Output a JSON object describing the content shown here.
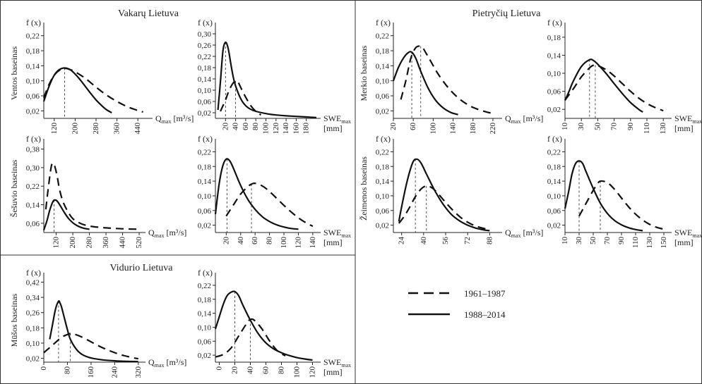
{
  "regions": {
    "west": "Vakarų Lietuva",
    "southeast": "Pietryčių Lietuva",
    "central": "Vidurio Lietuva"
  },
  "legend": {
    "dashed": "1961–1987",
    "solid": "1988–2014"
  },
  "fx_label": "f (x)",
  "chart_data": [
    {
      "id": "venta-q",
      "type": "line",
      "basin": "Ventos baseinas",
      "var": "Q",
      "xunit": "[m³/s]",
      "xticks": [
        120,
        200,
        280,
        360,
        440
      ],
      "xlim": [
        80,
        480
      ],
      "yticks": [
        0.02,
        0.06,
        0.1,
        0.14,
        0.18,
        0.22
      ],
      "ylim": [
        0,
        0.24
      ],
      "series": [
        {
          "style": "dashed",
          "x": [
            80,
            100,
            120,
            140,
            160,
            180,
            200,
            240,
            280,
            320,
            360,
            400,
            440,
            460
          ],
          "y": [
            0.055,
            0.09,
            0.115,
            0.128,
            0.133,
            0.13,
            0.124,
            0.106,
            0.083,
            0.062,
            0.045,
            0.031,
            0.021,
            0.017
          ]
        },
        {
          "style": "solid",
          "x": [
            80,
            100,
            120,
            140,
            160,
            180,
            200,
            220,
            240,
            260,
            280,
            300,
            320,
            340
          ],
          "y": [
            0.045,
            0.085,
            0.115,
            0.13,
            0.134,
            0.13,
            0.118,
            0.102,
            0.084,
            0.066,
            0.049,
            0.035,
            0.023,
            0.015
          ]
        }
      ],
      "peaks": [
        {
          "style": "solid",
          "x": 160,
          "y": 0.134
        }
      ]
    },
    {
      "id": "venta-swe",
      "type": "line",
      "basin": "",
      "var": "SWE",
      "xunit": "[mm]",
      "xticks": [
        20,
        40,
        60,
        80,
        100,
        120,
        140,
        160,
        180
      ],
      "xlim": [
        0,
        200
      ],
      "yticks": [
        0.02,
        0.06,
        0.1,
        0.14,
        0.18,
        0.22,
        0.26,
        0.3
      ],
      "ylim": [
        0,
        0.32
      ],
      "series": [
        {
          "style": "dashed",
          "x": [
            10,
            15,
            20,
            25,
            30,
            35,
            40,
            45,
            50,
            60,
            70,
            80,
            90
          ],
          "y": [
            0.025,
            0.045,
            0.065,
            0.09,
            0.11,
            0.125,
            0.133,
            0.128,
            0.11,
            0.075,
            0.045,
            0.025,
            0.012
          ]
        },
        {
          "style": "solid",
          "x": [
            5,
            10,
            15,
            20,
            25,
            30,
            35,
            40,
            50,
            60,
            70,
            80,
            100,
            120,
            140,
            160,
            180,
            200
          ],
          "y": [
            0.03,
            0.13,
            0.24,
            0.27,
            0.25,
            0.2,
            0.15,
            0.115,
            0.07,
            0.045,
            0.032,
            0.025,
            0.017,
            0.012,
            0.009,
            0.007,
            0.005,
            0.003
          ]
        }
      ],
      "peaks": [
        {
          "style": "solid",
          "x": 20,
          "y": 0.27
        },
        {
          "style": "dashed",
          "x": 40,
          "y": 0.133
        }
      ]
    },
    {
      "id": "merkys-q",
      "type": "line",
      "basin": "Merkio baseinas",
      "var": "Q",
      "xunit": "[m³/s]",
      "xticks": [
        20,
        60,
        100,
        140,
        180,
        220
      ],
      "xlim": [
        20,
        230
      ],
      "yticks": [
        0.02,
        0.06,
        0.1,
        0.14,
        0.18,
        0.22
      ],
      "ylim": [
        0,
        0.24
      ],
      "series": [
        {
          "style": "dashed",
          "x": [
            35,
            45,
            55,
            65,
            75,
            80,
            85,
            95,
            110,
            130,
            150,
            170,
            190,
            210,
            225
          ],
          "y": [
            0.05,
            0.1,
            0.16,
            0.188,
            0.192,
            0.186,
            0.175,
            0.152,
            0.118,
            0.082,
            0.055,
            0.036,
            0.024,
            0.016,
            0.012
          ]
        },
        {
          "style": "solid",
          "x": [
            20,
            30,
            40,
            50,
            57,
            65,
            75,
            90,
            105,
            120,
            135,
            150
          ],
          "y": [
            0.1,
            0.135,
            0.16,
            0.175,
            0.176,
            0.16,
            0.125,
            0.08,
            0.048,
            0.028,
            0.016,
            0.01
          ]
        }
      ],
      "peaks": [
        {
          "style": "solid",
          "x": 57,
          "y": 0.176
        },
        {
          "style": "dashed",
          "x": 75,
          "y": 0.192
        }
      ]
    },
    {
      "id": "merkys-swe",
      "type": "line",
      "basin": "",
      "var": "SWE",
      "xunit": "[mm]",
      "xticks": [
        10,
        30,
        50,
        70,
        90,
        110,
        130
      ],
      "xlim": [
        10,
        135
      ],
      "yticks": [
        0.02,
        0.06,
        0.1,
        0.14,
        0.18
      ],
      "ylim": [
        0,
        0.2
      ],
      "series": [
        {
          "style": "dashed",
          "x": [
            10,
            20,
            30,
            40,
            45,
            50,
            60,
            70,
            80,
            90,
            100,
            110,
            120,
            130
          ],
          "y": [
            0.04,
            0.065,
            0.092,
            0.112,
            0.118,
            0.117,
            0.108,
            0.094,
            0.077,
            0.06,
            0.045,
            0.033,
            0.024,
            0.017
          ]
        },
        {
          "style": "solid",
          "x": [
            10,
            15,
            20,
            30,
            40,
            45,
            50,
            60,
            70,
            80,
            90,
            100,
            105
          ],
          "y": [
            0.04,
            0.06,
            0.082,
            0.115,
            0.13,
            0.128,
            0.12,
            0.1,
            0.077,
            0.055,
            0.035,
            0.02,
            0.014
          ]
        }
      ],
      "peaks": [
        {
          "style": "solid",
          "x": 40,
          "y": 0.13
        },
        {
          "style": "dashed",
          "x": 47,
          "y": 0.118
        }
      ]
    },
    {
      "id": "sesuvis-q",
      "type": "line",
      "basin": "Šešuvio baseinas",
      "var": "Q",
      "xunit": "[m³/s]",
      "xticks": [
        120,
        200,
        280,
        360,
        440,
        520
      ],
      "xlim": [
        60,
        530
      ],
      "yticks": [
        0.06,
        0.14,
        0.22,
        0.3,
        0.38
      ],
      "ylim": [
        0.02,
        0.4
      ],
      "series": [
        {
          "style": "dashed",
          "x": [
            70,
            80,
            95,
            105,
            115,
            125,
            135,
            150,
            170,
            200,
            240,
            280,
            320,
            360,
            400,
            440,
            480,
            520
          ],
          "y": [
            0.12,
            0.2,
            0.3,
            0.32,
            0.3,
            0.26,
            0.21,
            0.16,
            0.12,
            0.08,
            0.058,
            0.048,
            0.043,
            0.04,
            0.038,
            0.036,
            0.035,
            0.034
          ]
        },
        {
          "style": "solid",
          "x": [
            60,
            75,
            90,
            105,
            115,
            125,
            140,
            160,
            180,
            200,
            220,
            240,
            260,
            280
          ],
          "y": [
            0.03,
            0.07,
            0.12,
            0.155,
            0.16,
            0.155,
            0.135,
            0.105,
            0.08,
            0.062,
            0.05,
            0.042,
            0.037,
            0.034
          ]
        }
      ],
      "peaks": [
        {
          "style": "solid",
          "x": 110,
          "y": 0.16
        }
      ]
    },
    {
      "id": "sesuvis-swe",
      "type": "line",
      "basin": "",
      "var": "SWE",
      "xunit": "[mm]",
      "xticks": [
        20,
        40,
        60,
        80,
        100,
        120,
        140
      ],
      "xlim": [
        5,
        145
      ],
      "yticks": [
        0.02,
        0.06,
        0.1,
        0.14,
        0.18,
        0.22
      ],
      "ylim": [
        0,
        0.24
      ],
      "series": [
        {
          "style": "dashed",
          "x": [
            20,
            30,
            40,
            50,
            55,
            60,
            70,
            80,
            90,
            100,
            110,
            120,
            130,
            140
          ],
          "y": [
            0.045,
            0.075,
            0.105,
            0.125,
            0.132,
            0.134,
            0.127,
            0.112,
            0.093,
            0.074,
            0.056,
            0.04,
            0.027,
            0.017
          ]
        },
        {
          "style": "solid",
          "x": [
            5,
            10,
            15,
            20,
            25,
            30,
            40,
            50,
            60,
            70,
            80,
            90,
            100,
            110,
            120
          ],
          "y": [
            0.05,
            0.13,
            0.18,
            0.2,
            0.195,
            0.175,
            0.128,
            0.09,
            0.063,
            0.043,
            0.03,
            0.021,
            0.015,
            0.011,
            0.009
          ]
        }
      ],
      "peaks": [
        {
          "style": "solid",
          "x": 21,
          "y": 0.2
        },
        {
          "style": "dashed",
          "x": 55,
          "y": 0.132
        }
      ]
    },
    {
      "id": "zeimena-q",
      "type": "line",
      "basin": "Žeimenos baseinas",
      "var": "Q",
      "xunit": "[m³/s]",
      "xticks": [
        24,
        40,
        56,
        72,
        88
      ],
      "xlim": [
        18,
        94
      ],
      "yticks": [
        0.02,
        0.06,
        0.1,
        0.14,
        0.18,
        0.22
      ],
      "ylim": [
        0,
        0.24
      ],
      "series": [
        {
          "style": "dashed",
          "x": [
            22,
            26,
            30,
            34,
            38,
            42,
            46,
            50,
            56,
            62,
            68,
            74,
            80,
            86
          ],
          "y": [
            0.025,
            0.045,
            0.07,
            0.098,
            0.118,
            0.127,
            0.122,
            0.108,
            0.082,
            0.058,
            0.038,
            0.024,
            0.015,
            0.009
          ]
        },
        {
          "style": "solid",
          "x": [
            22,
            24,
            28,
            32,
            35,
            38,
            42,
            48,
            54,
            60,
            66,
            72,
            78,
            84,
            88
          ],
          "y": [
            0.03,
            0.07,
            0.14,
            0.19,
            0.2,
            0.19,
            0.16,
            0.115,
            0.078,
            0.05,
            0.032,
            0.02,
            0.012,
            0.007,
            0.005
          ]
        }
      ],
      "peaks": [
        {
          "style": "solid",
          "x": 34,
          "y": 0.2
        },
        {
          "style": "dashed",
          "x": 42,
          "y": 0.127
        }
      ]
    },
    {
      "id": "zeimena-swe",
      "type": "line",
      "basin": "",
      "var": "SWE",
      "xunit": "[mm]",
      "xticks": [
        10,
        30,
        50,
        70,
        90,
        110,
        130,
        150
      ],
      "xlim": [
        10,
        155
      ],
      "yticks": [
        0.02,
        0.06,
        0.1,
        0.14,
        0.18,
        0.22
      ],
      "ylim": [
        0,
        0.24
      ],
      "series": [
        {
          "style": "dashed",
          "x": [
            30,
            40,
            50,
            55,
            60,
            70,
            80,
            90,
            100,
            110,
            120,
            130,
            140,
            150
          ],
          "y": [
            0.045,
            0.08,
            0.115,
            0.13,
            0.14,
            0.136,
            0.118,
            0.094,
            0.07,
            0.05,
            0.034,
            0.022,
            0.014,
            0.009
          ]
        },
        {
          "style": "solid",
          "x": [
            10,
            15,
            20,
            25,
            30,
            35,
            40,
            50,
            60,
            70,
            80,
            90,
            100,
            110,
            120
          ],
          "y": [
            0.065,
            0.11,
            0.16,
            0.188,
            0.195,
            0.188,
            0.165,
            0.12,
            0.08,
            0.052,
            0.033,
            0.021,
            0.013,
            0.008,
            0.005
          ]
        }
      ],
      "peaks": [
        {
          "style": "solid",
          "x": 30,
          "y": 0.195
        },
        {
          "style": "dashed",
          "x": 60,
          "y": 0.14
        }
      ]
    },
    {
      "id": "musa-q",
      "type": "line",
      "basin": "Mūšos baseinas",
      "var": "Q",
      "xunit": "[m³/s]",
      "xticks": [
        0,
        80,
        160,
        240,
        320
      ],
      "xlim": [
        0,
        330
      ],
      "yticks": [
        0.02,
        0.1,
        0.18,
        0.26,
        0.34,
        0.42
      ],
      "ylim": [
        0,
        0.44
      ],
      "series": [
        {
          "style": "dashed",
          "x": [
            0,
            30,
            60,
            80,
            90,
            100,
            120,
            150,
            180,
            210,
            240,
            270,
            300,
            320
          ],
          "y": [
            0.05,
            0.09,
            0.13,
            0.145,
            0.15,
            0.148,
            0.138,
            0.115,
            0.09,
            0.068,
            0.05,
            0.035,
            0.024,
            0.018
          ]
        },
        {
          "style": "solid",
          "x": [
            20,
            30,
            40,
            50,
            55,
            60,
            70,
            80,
            90,
            110,
            130,
            160,
            200,
            240,
            280,
            320
          ],
          "y": [
            0.12,
            0.2,
            0.28,
            0.32,
            0.31,
            0.29,
            0.23,
            0.17,
            0.12,
            0.068,
            0.04,
            0.022,
            0.012,
            0.007,
            0.004,
            0.003
          ]
        }
      ],
      "peaks": [
        {
          "style": "solid",
          "x": 50,
          "y": 0.32
        },
        {
          "style": "dashed",
          "x": 90,
          "y": 0.15
        }
      ]
    },
    {
      "id": "musa-swe",
      "type": "line",
      "basin": "",
      "var": "SWE",
      "xunit": "[mm]",
      "xticks": [
        0,
        20,
        40,
        60,
        80,
        100,
        120
      ],
      "xlim": [
        -5,
        125
      ],
      "yticks": [
        0.02,
        0.06,
        0.1,
        0.14,
        0.18,
        0.22
      ],
      "ylim": [
        0,
        0.24
      ],
      "series": [
        {
          "style": "dashed",
          "x": [
            -5,
            5,
            15,
            25,
            35,
            40,
            45,
            55,
            65,
            75,
            85
          ],
          "y": [
            0.015,
            0.022,
            0.04,
            0.075,
            0.11,
            0.122,
            0.12,
            0.095,
            0.06,
            0.032,
            0.018
          ]
        },
        {
          "style": "solid",
          "x": [
            -5,
            0,
            5,
            10,
            15,
            20,
            25,
            30,
            40,
            50,
            60,
            70,
            80,
            90,
            100,
            110,
            120
          ],
          "y": [
            0.095,
            0.13,
            0.165,
            0.19,
            0.2,
            0.202,
            0.19,
            0.165,
            0.12,
            0.082,
            0.055,
            0.038,
            0.027,
            0.019,
            0.013,
            0.009,
            0.006
          ]
        }
      ],
      "peaks": [
        {
          "style": "solid",
          "x": 20,
          "y": 0.202
        },
        {
          "style": "dashed",
          "x": 40,
          "y": 0.122
        }
      ]
    }
  ]
}
